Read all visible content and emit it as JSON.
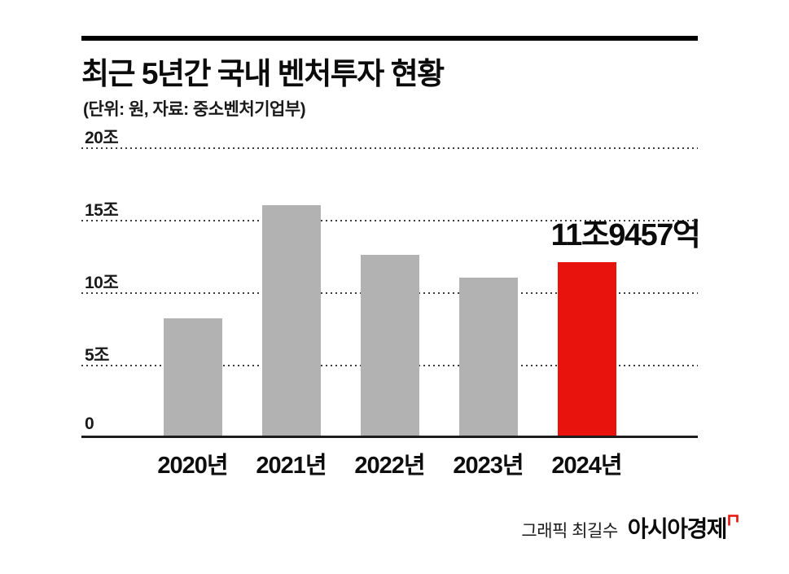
{
  "header": {
    "title": "최근 5년간 국내 벤처투자 현황",
    "subtitle": "(단위: 원, 자료: 중소벤처기업부)"
  },
  "chart_data": {
    "type": "bar",
    "categories": [
      "2020년",
      "2021년",
      "2022년",
      "2023년",
      "2024년"
    ],
    "values": [
      8.1,
      15.9,
      12.5,
      10.9,
      11.9457
    ],
    "unit": "조 원",
    "ylim": [
      0,
      20
    ],
    "yticks": [
      0,
      5,
      10,
      15,
      20
    ],
    "ytick_labels": [
      "0",
      "5조",
      "10조",
      "15조",
      "20조"
    ],
    "bar_colors": [
      "#b2b2b2",
      "#b2b2b2",
      "#b2b2b2",
      "#b2b2b2",
      "#e8130c"
    ],
    "grid": "dotted horizontal gridlines at each ytick, solid baseline at 0",
    "legend": "none",
    "annotation": {
      "text": "11조9457억",
      "target_index": 4
    }
  },
  "footer": {
    "credit": "그래픽 최길수",
    "brand": "아시아경제",
    "brand_mark_icon": "red-open-square-mark"
  },
  "colors": {
    "accent_red": "#e8130c",
    "bar_gray": "#b2b2b2",
    "text": "#0b0b0b"
  }
}
